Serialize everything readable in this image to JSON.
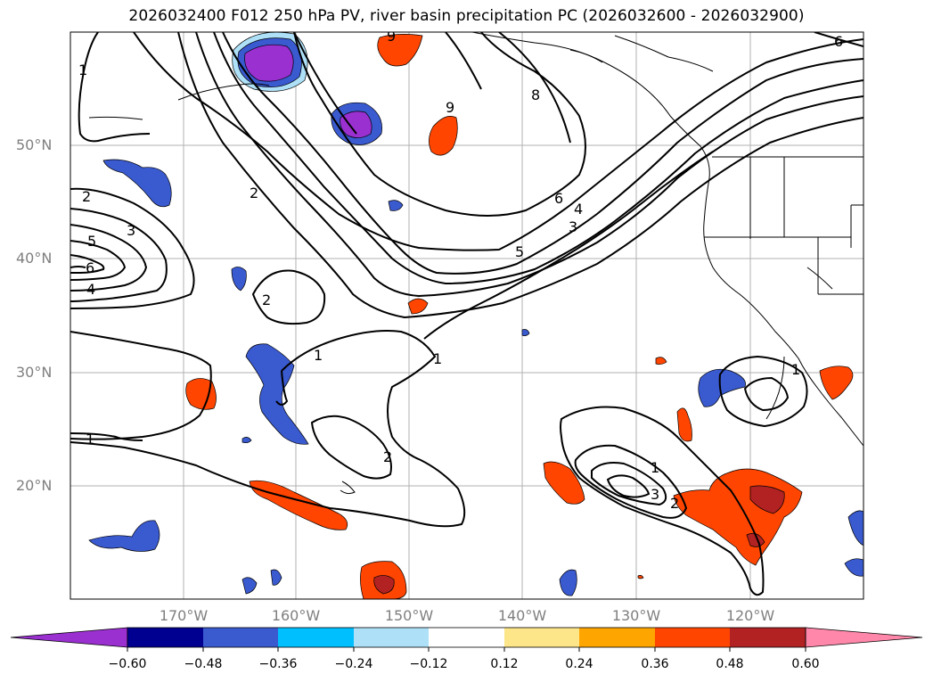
{
  "title": "2026032400 F012 250 hPa PV, river basin precipitation PC (2026032600 - 2026032900)",
  "lat_labels": [
    "50°N",
    "40°N",
    "30°N",
    "20°N"
  ],
  "lon_labels": [
    "170°W",
    "160°W",
    "150°W",
    "140°W",
    "130°W",
    "120°W"
  ],
  "colorbar": {
    "tick_labels": [
      "−0.60",
      "−0.48",
      "−0.36",
      "−0.24",
      "−0.12",
      "0.12",
      "0.24",
      "0.36",
      "0.48",
      "0.60"
    ],
    "colors": [
      "#9a30d0",
      "#000090",
      "#3a5ad0",
      "#00bfff",
      "#aee1f8",
      "#ffffff",
      "#fde68a",
      "#ffa500",
      "#ff4500",
      "#b22222",
      "#ff88aa"
    ]
  },
  "pv_contour_labels": {
    "a": "1",
    "b": "2",
    "c": "3",
    "d": "5",
    "e": "6",
    "f": "4",
    "g": "2",
    "h": "2",
    "i": "1",
    "j": "1",
    "k": "2",
    "l": "1",
    "m": "3",
    "n": "1",
    "o": "2",
    "p": "9",
    "q": "8",
    "r": "6",
    "s": "4",
    "t": "3",
    "u": "5",
    "v": "9",
    "w": "6",
    "x": "1"
  }
}
